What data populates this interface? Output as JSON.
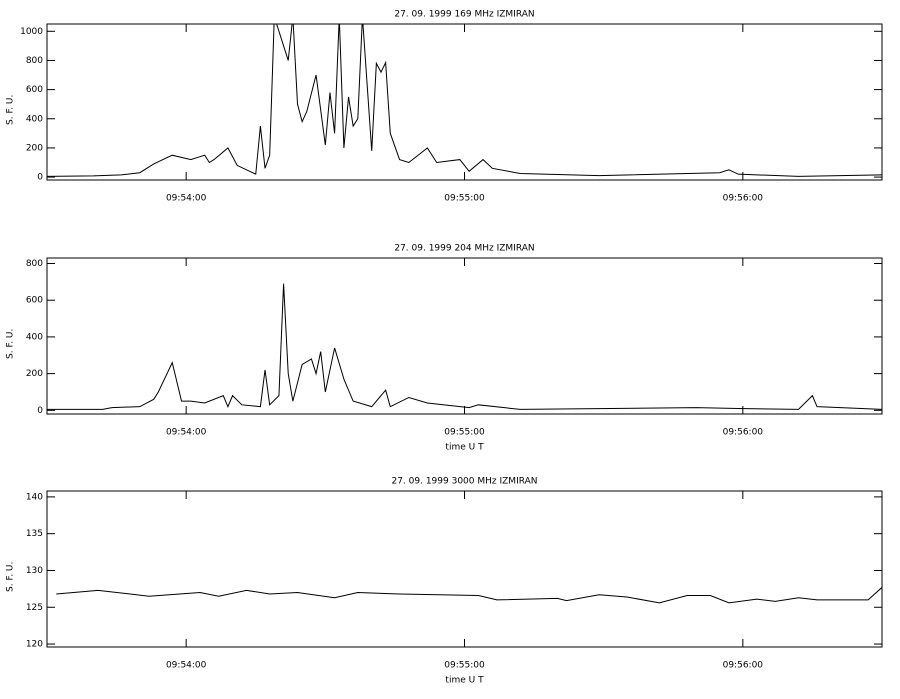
{
  "chart_data": [
    {
      "type": "line",
      "title": "27. 09. 1999   169 MHz    IZMIRAN",
      "ylabel": "S. F. U.",
      "color": "#000000",
      "xlim": [
        35610,
        35790
      ],
      "xticks": [
        {
          "value": 35640,
          "label": "09:54:00"
        },
        {
          "value": 35700,
          "label": "09:55:00"
        },
        {
          "value": 35760,
          "label": "09:56:00"
        }
      ],
      "ylim": [
        -20,
        1050
      ],
      "yticks": [
        0,
        200,
        400,
        600,
        800,
        1000
      ],
      "x": [
        35610,
        35620,
        35626,
        35630,
        35633,
        35637,
        35641,
        35644,
        35645,
        35646,
        35649,
        35651,
        35655,
        35656,
        35657,
        35658,
        35659,
        35662,
        35663,
        35664,
        35665,
        35666,
        35668,
        35670,
        35671,
        35672,
        35673,
        35674,
        35675,
        35676,
        35677,
        35678,
        35680,
        35681,
        35682,
        35683,
        35684,
        35686,
        35688,
        35692,
        35694,
        35699,
        35701,
        35704,
        35706,
        35712,
        35729,
        35755,
        35757,
        35759,
        35772,
        35790
      ],
      "values": [
        5,
        8,
        15,
        30,
        90,
        150,
        120,
        150,
        100,
        120,
        200,
        80,
        20,
        350,
        60,
        150,
        1100,
        800,
        1100,
        500,
        380,
        450,
        700,
        220,
        580,
        300,
        1100,
        200,
        550,
        350,
        400,
        1100,
        180,
        780,
        720,
        785,
        300,
        120,
        100,
        200,
        100,
        120,
        40,
        120,
        60,
        25,
        10,
        30,
        50,
        20,
        5,
        15
      ]
    },
    {
      "type": "line",
      "title": "27. 09. 1999   204 MHz    IZMIRAN",
      "ylabel": "S. F. U.",
      "xlabel": "time   U T",
      "color": "#000000",
      "xlim": [
        35610,
        35790
      ],
      "xticks": [
        {
          "value": 35640,
          "label": "09:54:00"
        },
        {
          "value": 35700,
          "label": "09:55:00"
        },
        {
          "value": 35760,
          "label": "09:56:00"
        }
      ],
      "ylim": [
        -20,
        830
      ],
      "yticks": [
        0,
        200,
        400,
        600,
        800
      ],
      "x": [
        35610,
        35622,
        35624,
        35630,
        35633,
        35634,
        35637,
        35639,
        35641,
        35644,
        35648,
        35649,
        35650,
        35652,
        35656,
        35657,
        35658,
        35660,
        35661,
        35662,
        35663,
        35665,
        35667,
        35668,
        35669,
        35670,
        35672,
        35674,
        35676,
        35680,
        35683,
        35684,
        35688,
        35692,
        35701,
        35703,
        35712,
        35750,
        35759,
        35772,
        35775,
        35776,
        35790
      ],
      "values": [
        5,
        5,
        15,
        20,
        60,
        100,
        260,
        50,
        50,
        40,
        80,
        20,
        80,
        30,
        20,
        220,
        30,
        80,
        690,
        200,
        50,
        250,
        280,
        200,
        320,
        100,
        340,
        170,
        50,
        20,
        110,
        20,
        70,
        40,
        15,
        30,
        5,
        15,
        10,
        5,
        80,
        20,
        5
      ]
    },
    {
      "type": "line",
      "title": "27. 09. 1999   3000 MHz    IZMIRAN",
      "ylabel": "S. F. U.",
      "xlabel": "time   U T",
      "color": "#000000",
      "xlim": [
        35610,
        35790
      ],
      "xticks": [
        {
          "value": 35640,
          "label": "09:54:00"
        },
        {
          "value": 35700,
          "label": "09:55:00"
        },
        {
          "value": 35760,
          "label": "09:56:00"
        }
      ],
      "ylim": [
        119.6,
        140.8
      ],
      "yticks": [
        120,
        125,
        130,
        135,
        140
      ],
      "x": [
        35612,
        35621,
        35632,
        35643,
        35647,
        35653,
        35658,
        35664,
        35672,
        35677,
        35686,
        35703,
        35707,
        35720,
        35722,
        35729,
        35735,
        35742,
        35748,
        35753,
        35757,
        35763,
        35767,
        35772,
        35776,
        35787,
        35790
      ],
      "values": [
        126.8,
        127.3,
        126.5,
        127,
        126.5,
        127.3,
        126.8,
        127,
        126.3,
        127,
        126.8,
        126.6,
        126,
        126.2,
        125.9,
        126.7,
        126.4,
        125.6,
        126.6,
        126.6,
        125.6,
        126.1,
        125.8,
        126.3,
        126,
        126,
        127.7
      ]
    }
  ]
}
